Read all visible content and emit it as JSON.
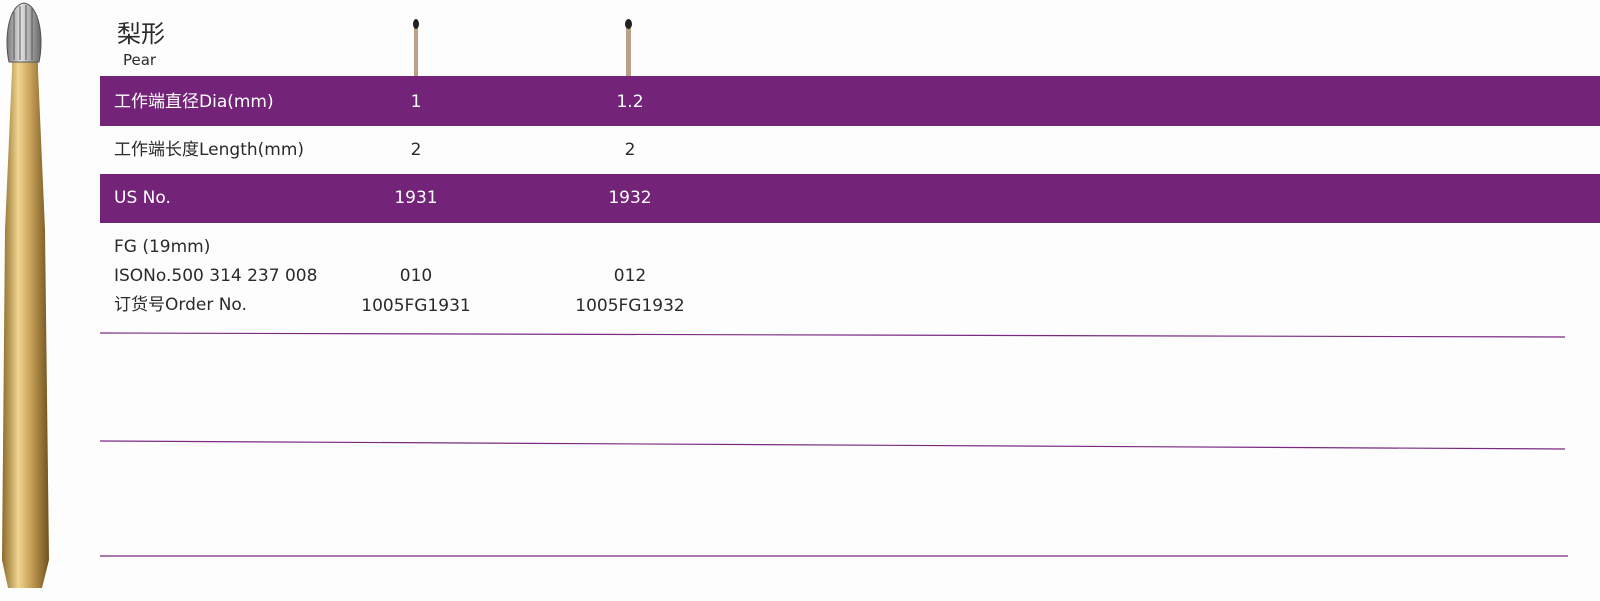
{
  "header": {
    "title": "梨形",
    "subtitle": "Pear"
  },
  "table": {
    "rows": [
      [
        "工作端直径Dia(mm)",
        "1",
        "1.2"
      ],
      [
        "工作端长度Length(mm)",
        "2",
        "2"
      ],
      [
        "US No.",
        "1931",
        "1932"
      ]
    ],
    "fg": {
      "label": "FG (19mm)",
      "iso": {
        "label": "ISONo.500 314 237 008",
        "values": [
          "010",
          "012"
        ]
      },
      "order": {
        "label": "订货号Order No.",
        "values": [
          "1005FG1931",
          "1005FG1932"
        ]
      }
    }
  }
}
